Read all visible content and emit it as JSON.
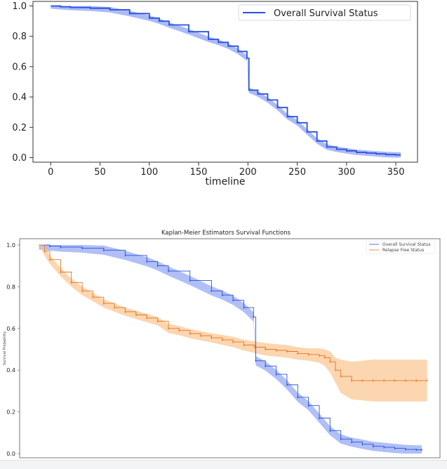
{
  "chart_data": [
    {
      "type": "line",
      "title": "",
      "xlabel": "timeline",
      "ylabel": "",
      "xlim": [
        -18,
        372
      ],
      "ylim": [
        -0.03,
        1.03
      ],
      "x_ticks": [
        "0",
        "50",
        "100",
        "150",
        "200",
        "250",
        "300",
        "350"
      ],
      "y_ticks": [
        "0.0",
        "0.2",
        "0.4",
        "0.6",
        "0.8",
        "1.0"
      ],
      "legend_position": "top-right",
      "series": [
        {
          "name": "Overall Survival Status",
          "color": "#2a4fe0",
          "band_color": "#8fa4f2",
          "x": [
            0,
            10,
            20,
            40,
            60,
            80,
            100,
            110,
            120,
            140,
            160,
            170,
            180,
            190,
            199,
            201,
            210,
            220,
            230,
            240,
            250,
            260,
            270,
            280,
            290,
            300,
            310,
            320,
            330,
            340,
            350,
            355
          ],
          "y": [
            1.0,
            0.995,
            0.99,
            0.985,
            0.975,
            0.95,
            0.92,
            0.9,
            0.875,
            0.83,
            0.78,
            0.76,
            0.735,
            0.7,
            0.655,
            0.445,
            0.42,
            0.38,
            0.33,
            0.27,
            0.23,
            0.17,
            0.11,
            0.07,
            0.055,
            0.045,
            0.035,
            0.03,
            0.025,
            0.02,
            0.018,
            0.018
          ],
          "band_width": 0.018
        }
      ]
    },
    {
      "type": "line",
      "title": "Kaplan-Meier Estimators Survival Functions",
      "xlabel": "",
      "ylabel": "Survival Probability",
      "xlim": [
        -18,
        372
      ],
      "ylim": [
        -0.02,
        1.03
      ],
      "y_ticks": [
        "0.0",
        "0.2",
        "0.4",
        "0.6",
        "0.8",
        "1.0"
      ],
      "legend_position": "top-right",
      "series": [
        {
          "name": "Overall Survival Status",
          "color": "#2a4fe0",
          "band_color": "#8fa4f2",
          "x": [
            0,
            10,
            20,
            40,
            60,
            80,
            100,
            110,
            120,
            140,
            160,
            170,
            180,
            190,
            199,
            201,
            210,
            220,
            230,
            240,
            250,
            260,
            270,
            280,
            290,
            300,
            310,
            320,
            330,
            340,
            350,
            355
          ],
          "y": [
            1.0,
            0.995,
            0.99,
            0.985,
            0.975,
            0.95,
            0.92,
            0.9,
            0.875,
            0.83,
            0.78,
            0.76,
            0.735,
            0.7,
            0.655,
            0.445,
            0.42,
            0.38,
            0.33,
            0.27,
            0.23,
            0.17,
            0.11,
            0.07,
            0.055,
            0.045,
            0.035,
            0.03,
            0.025,
            0.02,
            0.018,
            0.018
          ],
          "band_width": 0.022
        },
        {
          "name": "Relapse Free Status",
          "color": "#e5751f",
          "band_color": "#fbc58e",
          "x": [
            0,
            5,
            10,
            20,
            30,
            40,
            50,
            60,
            70,
            80,
            90,
            100,
            110,
            120,
            130,
            140,
            150,
            160,
            170,
            180,
            190,
            200,
            210,
            220,
            230,
            240,
            250,
            260,
            265,
            270,
            275,
            280,
            290,
            300,
            310,
            320,
            330,
            340,
            350,
            360
          ],
          "y": [
            1.0,
            0.97,
            0.93,
            0.87,
            0.82,
            0.78,
            0.75,
            0.72,
            0.7,
            0.68,
            0.665,
            0.65,
            0.635,
            0.6,
            0.59,
            0.575,
            0.565,
            0.555,
            0.545,
            0.535,
            0.52,
            0.51,
            0.5,
            0.495,
            0.49,
            0.48,
            0.475,
            0.47,
            0.46,
            0.44,
            0.4,
            0.37,
            0.35,
            0.35,
            0.35,
            0.35,
            0.35,
            0.35,
            0.35,
            0.35
          ],
          "band": [
            0.0,
            0.02,
            0.02,
            0.02,
            0.02,
            0.02,
            0.02,
            0.02,
            0.02,
            0.02,
            0.02,
            0.02,
            0.02,
            0.022,
            0.022,
            0.022,
            0.022,
            0.022,
            0.024,
            0.025,
            0.026,
            0.028,
            0.03,
            0.03,
            0.03,
            0.03,
            0.03,
            0.035,
            0.04,
            0.05,
            0.06,
            0.08,
            0.09,
            0.095,
            0.1,
            0.1,
            0.1,
            0.1,
            0.1,
            0.1
          ]
        }
      ]
    }
  ]
}
